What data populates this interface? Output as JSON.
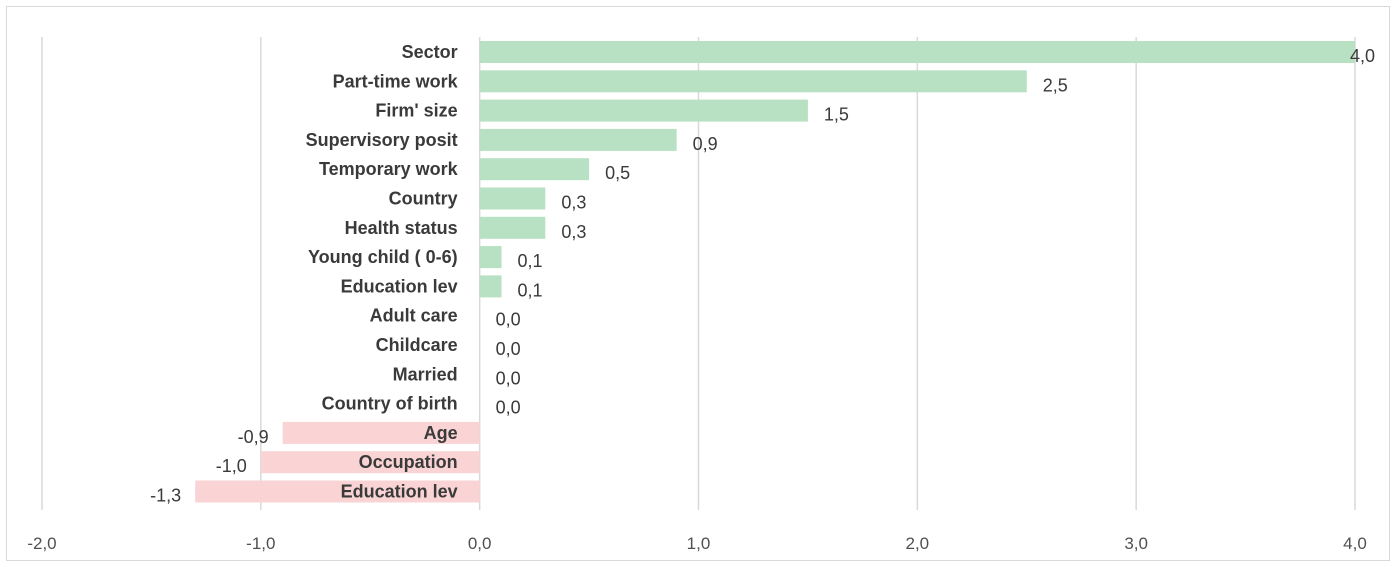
{
  "chart_data": {
    "type": "bar",
    "orientation": "horizontal",
    "categories": [
      "Sector",
      "Part-time work",
      "Firm' size",
      "Supervisory posit",
      "Temporary work",
      "Country",
      "Health status",
      "Young child ( 0-6)",
      "Education lev",
      "Adult care",
      "Childcare",
      "Married",
      "Country of birth",
      "Age",
      "Occupation",
      "Education lev"
    ],
    "values": [
      4.0,
      2.5,
      1.5,
      0.9,
      0.5,
      0.3,
      0.3,
      0.1,
      0.1,
      0.0,
      0.0,
      0.0,
      0.0,
      -0.9,
      -1.0,
      -1.3
    ],
    "value_labels": [
      "4,0",
      "2,5",
      "1,5",
      "0,9",
      "0,5",
      "0,3",
      "0,3",
      "0,1",
      "0,1",
      "0,0",
      "0,0",
      "0,0",
      "0,0",
      "-0,9",
      "-1,0",
      "-1,3"
    ],
    "xlim": [
      -2.0,
      4.0
    ],
    "x_ticks": [
      -2.0,
      -1.0,
      0.0,
      1.0,
      2.0,
      3.0,
      4.0
    ],
    "x_tick_labels": [
      "-2,0",
      "-1,0",
      "0,0",
      "1,0",
      "2,0",
      "3,0",
      "4,0"
    ],
    "grid": "vertical",
    "title": "",
    "xlabel": "",
    "ylabel": "",
    "colors": {
      "positive": "#b7e1c2",
      "negative": "#fad4d4",
      "grid": "#d9d9d9"
    }
  }
}
